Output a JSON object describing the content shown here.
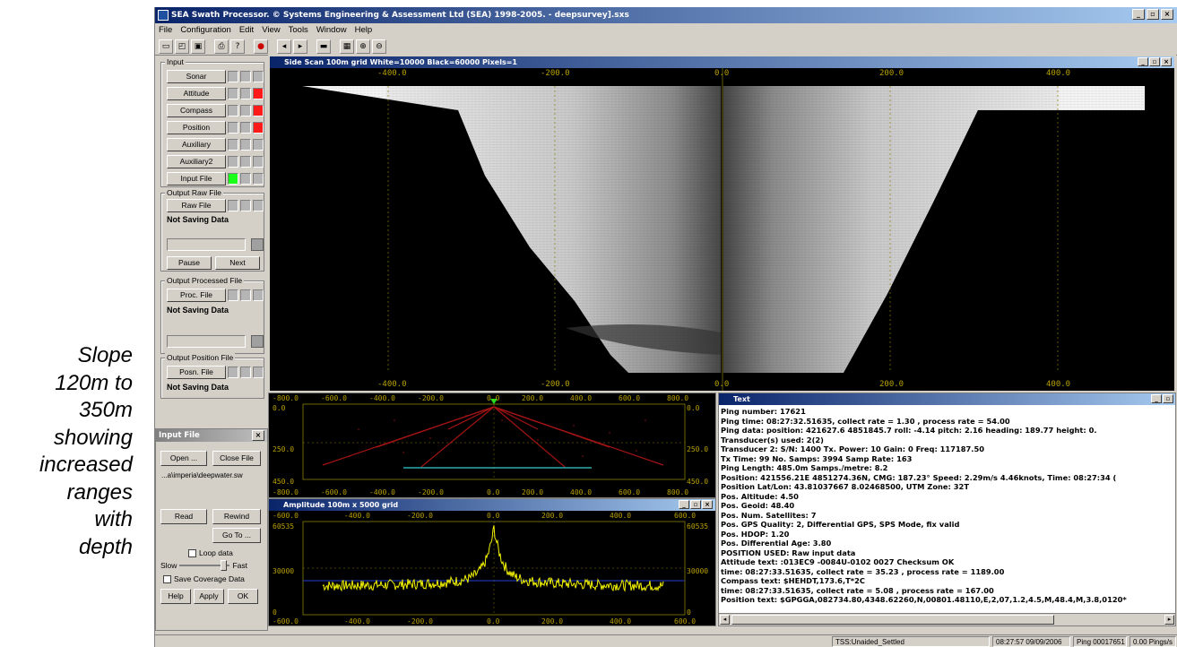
{
  "caption": {
    "lines": [
      "Slope",
      "120m to",
      "350m",
      "showing",
      "increased",
      "ranges",
      "with",
      "depth"
    ]
  },
  "window": {
    "title": "SEA Swath Processor.  © Systems Engineering & Assessment Ltd (SEA) 1998-2005. - deepsurvey].sxs"
  },
  "menu": [
    "File",
    "Configuration",
    "Edit",
    "View",
    "Tools",
    "Window",
    "Help"
  ],
  "input_group": {
    "label": "Input",
    "buttons": [
      "Sonar",
      "Attitude",
      "Compass",
      "Position",
      "Auxiliary",
      "Auxiliary2",
      "Input File"
    ]
  },
  "raw_group": {
    "label": "Output Raw File",
    "button": "Raw File",
    "status": "Not Saving Data",
    "pause": "Pause",
    "next": "Next"
  },
  "proc_group": {
    "label": "Output Processed File",
    "button": "Proc. File",
    "status": "Not Saving Data"
  },
  "posn_group": {
    "label": "Output Position File",
    "button": "Posn. File",
    "status": "Not Saving Data"
  },
  "input_file": {
    "title": "Input File",
    "open": "Open ...",
    "close": "Close File",
    "path": "...a\\imperia\\deepwater.sw",
    "read": "Read",
    "rewind": "Rewind",
    "goto": "Go To ...",
    "loop": "Loop data",
    "slow": "Slow",
    "fast": "Fast",
    "save_coverage": "Save Coverage Data",
    "help": "Help",
    "apply": "Apply",
    "ok": "OK"
  },
  "sidescan": {
    "title": "Side Scan 100m grid White=10000 Black=60000 Pixels=1",
    "top_ticks": [
      "-400.0",
      "-200.0",
      "0.0",
      "200.0",
      "400.0"
    ],
    "bottom_ticks": [
      "-400.0",
      "-200.0",
      "0.0",
      "200.0",
      "400.0"
    ]
  },
  "coverage": {
    "top_ticks": [
      "-800.0",
      "-600.0",
      "-400.0",
      "-200.0",
      "0.0",
      "200.0",
      "400.0",
      "600.0",
      "800.0"
    ],
    "bottom_ticks": [
      "-800.0",
      "-600.0",
      "-400.0",
      "-200.0",
      "0.0",
      "200.0",
      "400.0",
      "600.0",
      "800.0"
    ],
    "left_ticks": [
      "0.0",
      "250.0",
      "450.0"
    ],
    "right_ticks": [
      "0.0",
      "250.0",
      "450.0"
    ]
  },
  "amplitude": {
    "title": "Amplitude 100m x 5000 grid",
    "top_ticks": [
      "-600.0",
      "-400.0",
      "-200.0",
      "0.0",
      "200.0",
      "400.0",
      "600.0"
    ],
    "bottom_ticks": [
      "-600.0",
      "-400.0",
      "-200.0",
      "0.0",
      "200.0",
      "400.0",
      "600.0"
    ],
    "left_ticks": [
      "60535",
      "30000",
      "0"
    ],
    "right_ticks": [
      "60535",
      "30000",
      "0"
    ]
  },
  "text_window": {
    "title": "Text",
    "lines": [
      "Ping number: 17621",
      "Ping time: 08:27:32.51635, collect rate = 1.30 , process rate = 54.00",
      "Ping data: position: 421627.6 4851845.7    roll: -4.14    pitch: 2.16    heading: 189.77    height: 0.",
      "Transducer(s) used: 2(2)",
      "Transducer 2: S/N: 1400 Tx. Power: 10  Gain: 0  Freq: 117187.50",
      "  Tx Time: 99  No. Samps: 3994  Samp Rate: 163",
      "  Ping Length: 485.0m Samps./metre: 8.2",
      "Position: 421556.21E 4851274.36N,  CMG: 187.23°  Speed: 2.29m/s 4.46knots,  Time: 08:27:34 (",
      "Position Lat/Lon: 43.81037667 8.02468500, UTM Zone: 32T",
      "Pos. Altitude: 4.50",
      "Pos. Geoid: 48.40",
      "Pos. Num. Satellites: 7",
      "Pos. GPS Quality: 2,  Differential GPS, SPS Mode, fix valid",
      "Pos. HDOP: 1.20",
      "Pos. Differential Age: 3.80",
      "POSITION USED: Raw input data",
      "Attitude text: :013EC9 -0084U-0102  0027  Checksum OK",
      "             time: 08:27:33.51635, collect rate = 35.23 , process rate = 1189.00",
      "Compass text: $HEHDT,173.6,T*2C",
      "             time: 08:27:33.51635, collect rate = 5.08 , process rate = 167.00",
      "Position text: $GPGGA,082734.80,4348.62260,N,00801.48110,E,2,07,1.2,4.5,M,48.4,M,3.8,0120*"
    ]
  },
  "status": {
    "mode": "TSS:Unaided_Settled",
    "datetime": "08:27:57 09/09/2006",
    "ping": "Ping 00017651",
    "rate": "0.00 Pings/s"
  },
  "colors": {
    "accent": "#0a246a",
    "led_red": "#ff1a1a",
    "led_green": "#1aff1a",
    "axis": "#b8a000",
    "amp_signal": "#f2f200"
  }
}
